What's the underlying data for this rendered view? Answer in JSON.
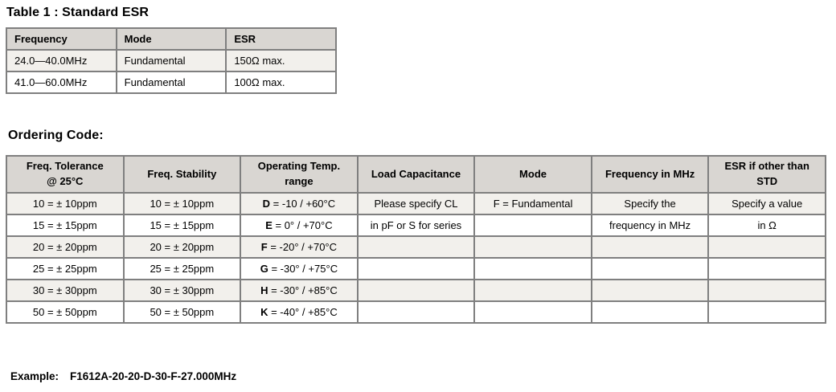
{
  "titles": {
    "table1": "Table 1 : Standard ESR",
    "ordering": "Ordering Code:"
  },
  "colors": {
    "header_bg": "#d9d6d2",
    "stripe_bg": "#f2f0ec",
    "border_color": "#7f7f7f",
    "text_color": "#000000"
  },
  "esr_table": {
    "headers": [
      "Frequency",
      "Mode",
      "ESR"
    ],
    "rows": [
      [
        "24.0—40.0MHz",
        "Fundamental",
        "150Ω max."
      ],
      [
        "41.0—60.0MHz",
        "Fundamental",
        "100Ω max."
      ]
    ]
  },
  "ordering_table": {
    "headers": [
      "Freq. Tolerance\n@ 25°C",
      "Freq. Stability",
      "Operating Temp.\nrange",
      "Load Capacitance",
      "Mode",
      "Frequency in MHz",
      "ESR if other than\nSTD"
    ],
    "bold_first_token_columns": [
      2
    ],
    "rows": [
      [
        "10 = ± 10ppm",
        "10 = ± 10ppm",
        "D = -10 / +60°C",
        "Please specify CL",
        "F = Fundamental",
        "Specify the",
        "Specify a value"
      ],
      [
        "15 = ± 15ppm",
        "15 = ± 15ppm",
        "E = 0° / +70°C",
        "in pF or S for series",
        "",
        "frequency in MHz",
        "in Ω"
      ],
      [
        "20 = ± 20ppm",
        "20 = ± 20ppm",
        "F = -20° / +70°C",
        "",
        "",
        "",
        ""
      ],
      [
        "25 = ± 25ppm",
        "25 = ± 25ppm",
        "G = -30° / +75°C",
        "",
        "",
        "",
        ""
      ],
      [
        "30 = ± 30ppm",
        "30 = ± 30ppm",
        "H = -30° / +85°C",
        "",
        "",
        "",
        ""
      ],
      [
        "50 = ± 50ppm",
        "50 = ± 50ppm",
        "K = -40° / +85°C",
        "",
        "",
        "",
        ""
      ]
    ]
  },
  "example": {
    "label": "Example:",
    "value": "F1612A-20-20-D-30-F-27.000MHz"
  }
}
